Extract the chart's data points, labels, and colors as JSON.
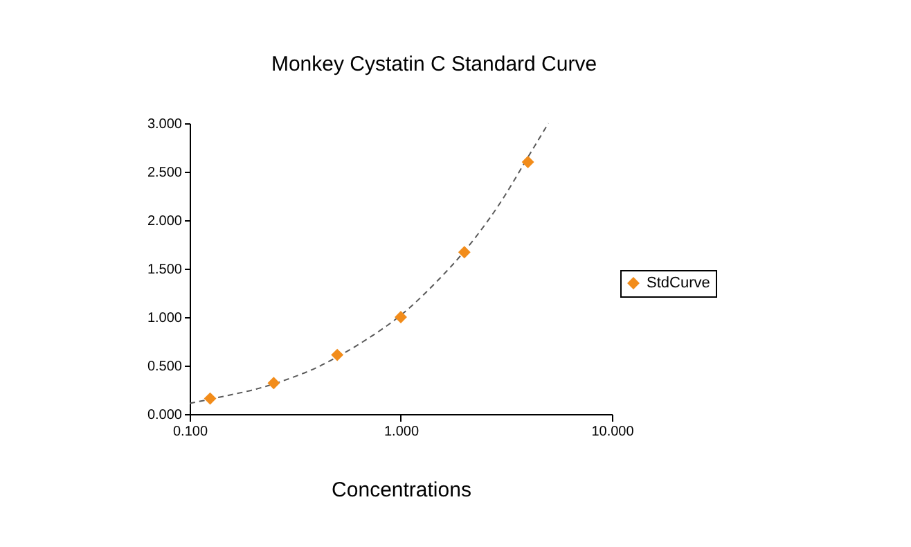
{
  "chart_data": {
    "type": "scatter",
    "title": "Monkey Cystatin C Standard Curve",
    "xlabel": "Concentrations",
    "log": "x",
    "legend": "right",
    "xlim": [
      0.1,
      10
    ],
    "xticks": [
      {
        "value": 0.1,
        "label": "0.100"
      },
      {
        "value": 1,
        "label": "1.000"
      },
      {
        "value": 10,
        "label": "10.000"
      }
    ],
    "ylim": [
      0,
      3
    ],
    "yticks": [
      {
        "value": 0,
        "label": "0.000"
      },
      {
        "value": 0.5,
        "label": "0.500"
      },
      {
        "value": 1,
        "label": "1.000"
      },
      {
        "value": 1.5,
        "label": "1.500"
      },
      {
        "value": 2,
        "label": "2.000"
      },
      {
        "value": 2.5,
        "label": "2.500"
      },
      {
        "value": 3,
        "label": "3.000"
      }
    ],
    "series": [
      {
        "type": "line",
        "color": "#595959",
        "line_style": "dashed",
        "marker": "none",
        "x": [
          0.1,
          0.15,
          0.2,
          0.3,
          0.4,
          0.5,
          0.7,
          1,
          1.5,
          2,
          3,
          4,
          5
        ],
        "values": [
          0.11,
          0.19,
          0.25,
          0.37,
          0.48,
          0.59,
          0.78,
          1.02,
          1.38,
          1.68,
          2.2,
          2.65,
          3.0
        ]
      },
      {
        "name": "StdCurve",
        "color": "#f28c1a",
        "marker": "diamond",
        "x": [
          0.125,
          0.25,
          0.5,
          1,
          2,
          4
        ],
        "values": [
          0.16,
          0.32,
          0.61,
          1.0,
          1.67,
          2.6
        ]
      }
    ]
  }
}
